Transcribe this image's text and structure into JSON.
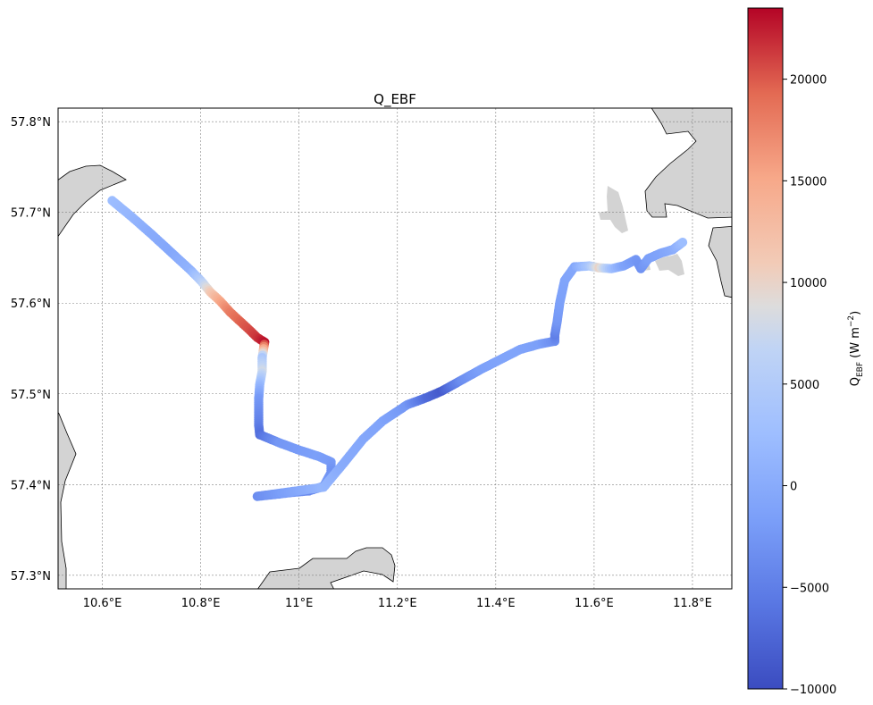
{
  "title": "Q_EBF",
  "map": {
    "lon_range": [
      10.51,
      11.88
    ],
    "lat_range": [
      57.285,
      57.815
    ],
    "gridlines": true,
    "land_color": "#d3d3d3",
    "coastline_color": "#000000",
    "x_ticks": [
      {
        "value": 10.6,
        "label": "10.6°E"
      },
      {
        "value": 10.8,
        "label": "10.8°E"
      },
      {
        "value": 11.0,
        "label": "11°E"
      },
      {
        "value": 11.2,
        "label": "11.2°E"
      },
      {
        "value": 11.4,
        "label": "11.4°E"
      },
      {
        "value": 11.6,
        "label": "11.6°E"
      },
      {
        "value": 11.8,
        "label": "11.8°E"
      }
    ],
    "y_ticks": [
      {
        "value": 57.3,
        "label": "57.3°N"
      },
      {
        "value": 57.4,
        "label": "57.4°N"
      },
      {
        "value": 57.5,
        "label": "57.5°N"
      },
      {
        "value": 57.6,
        "label": "57.6°N"
      },
      {
        "value": 57.7,
        "label": "57.7°N"
      },
      {
        "value": 57.8,
        "label": "57.8°N"
      }
    ]
  },
  "colorbar": {
    "label_main": "Q",
    "label_sub": "EBF",
    "label_unit_open": " (W m",
    "label_exp": "−2",
    "label_close": ")",
    "vmin": -10000,
    "vmax": 23500,
    "colormap": "coolwarm",
    "ticks": [
      {
        "value": -10000,
        "label": "−10000"
      },
      {
        "value": -5000,
        "label": "−5000"
      },
      {
        "value": 0,
        "label": "0"
      },
      {
        "value": 5000,
        "label": "5000"
      },
      {
        "value": 10000,
        "label": "10000"
      },
      {
        "value": 15000,
        "label": "15000"
      },
      {
        "value": 20000,
        "label": "20000"
      }
    ]
  },
  "chart_data": {
    "type": "scatter",
    "title": "Q_EBF",
    "x_unit": "longitude (°E)",
    "y_unit": "latitude (°N)",
    "value_unit": "W m−2",
    "track": [
      {
        "lon": 10.62,
        "lat": 57.713,
        "q": 2500
      },
      {
        "lon": 10.66,
        "lat": 57.695,
        "q": 1500
      },
      {
        "lon": 10.7,
        "lat": 57.676,
        "q": 0
      },
      {
        "lon": 10.74,
        "lat": 57.656,
        "q": -500
      },
      {
        "lon": 10.78,
        "lat": 57.636,
        "q": 1000
      },
      {
        "lon": 10.8,
        "lat": 57.625,
        "q": 5000
      },
      {
        "lon": 10.82,
        "lat": 57.612,
        "q": 11000
      },
      {
        "lon": 10.84,
        "lat": 57.602,
        "q": 15000
      },
      {
        "lon": 10.86,
        "lat": 57.59,
        "q": 18000
      },
      {
        "lon": 10.88,
        "lat": 57.58,
        "q": 19500
      },
      {
        "lon": 10.9,
        "lat": 57.57,
        "q": 20500
      },
      {
        "lon": 10.915,
        "lat": 57.562,
        "q": 21500
      },
      {
        "lon": 10.93,
        "lat": 57.557,
        "q": 23000
      },
      {
        "lon": 10.925,
        "lat": 57.54,
        "q": 4000
      },
      {
        "lon": 10.925,
        "lat": 57.525,
        "q": 8000
      },
      {
        "lon": 10.92,
        "lat": 57.51,
        "q": 2000
      },
      {
        "lon": 10.918,
        "lat": 57.495,
        "q": -2000
      },
      {
        "lon": 10.918,
        "lat": 57.48,
        "q": -3500
      },
      {
        "lon": 10.918,
        "lat": 57.465,
        "q": -5000
      },
      {
        "lon": 10.92,
        "lat": 57.455,
        "q": -6500
      },
      {
        "lon": 10.96,
        "lat": 57.446,
        "q": -2500
      },
      {
        "lon": 11.0,
        "lat": 57.438,
        "q": -2000
      },
      {
        "lon": 11.04,
        "lat": 57.431,
        "q": -1500
      },
      {
        "lon": 11.065,
        "lat": 57.425,
        "q": -2000
      },
      {
        "lon": 11.065,
        "lat": 57.413,
        "q": -3000
      },
      {
        "lon": 11.05,
        "lat": 57.398,
        "q": -2000
      },
      {
        "lon": 11.02,
        "lat": 57.393,
        "q": -4000
      },
      {
        "lon": 10.98,
        "lat": 57.391,
        "q": -2500
      },
      {
        "lon": 10.95,
        "lat": 57.389,
        "q": -3000
      },
      {
        "lon": 10.915,
        "lat": 57.387,
        "q": -3500
      },
      {
        "lon": 11.05,
        "lat": 57.397,
        "q": 1500
      },
      {
        "lon": 11.09,
        "lat": 57.423,
        "q": 0
      },
      {
        "lon": 11.13,
        "lat": 57.45,
        "q": -500
      },
      {
        "lon": 11.17,
        "lat": 57.47,
        "q": -1000
      },
      {
        "lon": 11.22,
        "lat": 57.488,
        "q": -2500
      },
      {
        "lon": 11.26,
        "lat": 57.496,
        "q": -7000
      },
      {
        "lon": 11.29,
        "lat": 57.503,
        "q": -8500
      },
      {
        "lon": 11.33,
        "lat": 57.515,
        "q": -3500
      },
      {
        "lon": 11.37,
        "lat": 57.527,
        "q": -1500
      },
      {
        "lon": 11.41,
        "lat": 57.538,
        "q": -1000
      },
      {
        "lon": 11.45,
        "lat": 57.549,
        "q": -1000
      },
      {
        "lon": 11.49,
        "lat": 57.555,
        "q": -1500
      },
      {
        "lon": 11.52,
        "lat": 57.558,
        "q": -3500
      },
      {
        "lon": 11.52,
        "lat": 57.565,
        "q": -5000
      },
      {
        "lon": 11.525,
        "lat": 57.58,
        "q": -2500
      },
      {
        "lon": 11.53,
        "lat": 57.6,
        "q": -1500
      },
      {
        "lon": 11.54,
        "lat": 57.625,
        "q": -1000
      },
      {
        "lon": 11.56,
        "lat": 57.64,
        "q": -500
      },
      {
        "lon": 11.59,
        "lat": 57.641,
        "q": 4000
      },
      {
        "lon": 11.61,
        "lat": 57.639,
        "q": 10000
      },
      {
        "lon": 11.635,
        "lat": 57.638,
        "q": 3000
      },
      {
        "lon": 11.66,
        "lat": 57.641,
        "q": -1000
      },
      {
        "lon": 11.685,
        "lat": 57.648,
        "q": -2500
      },
      {
        "lon": 11.695,
        "lat": 57.638,
        "q": -3000
      },
      {
        "lon": 11.71,
        "lat": 57.649,
        "q": -1500
      },
      {
        "lon": 11.735,
        "lat": 57.655,
        "q": -1000
      },
      {
        "lon": 11.76,
        "lat": 57.659,
        "q": 0
      },
      {
        "lon": 11.78,
        "lat": 57.667,
        "q": 2500
      }
    ]
  }
}
